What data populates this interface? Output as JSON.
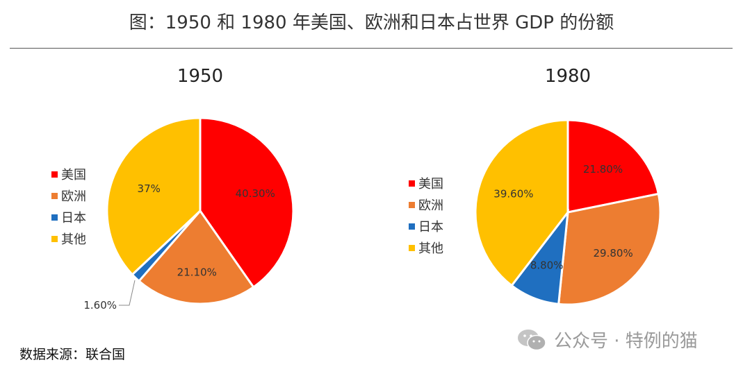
{
  "title": "图：1950 和 1980 年美国、欧洲和日本占世界 GDP 的份额",
  "source": "数据来源：联合国",
  "watermark": {
    "icon": "wechat-icon",
    "text": "公众号 · 特例的猫"
  },
  "colors": {
    "美国": "#ff0000",
    "欧洲": "#ed7d31",
    "日本": "#1f6fc0",
    "其他": "#ffc000"
  },
  "chart_data": [
    {
      "type": "pie",
      "title": "1950",
      "categories": [
        "美国",
        "欧洲",
        "日本",
        "其他"
      ],
      "values": [
        40.3,
        21.1,
        1.6,
        37.0
      ],
      "labels": [
        "40.30%",
        "21.10%",
        "1.60%",
        "37%"
      ],
      "legend": [
        "美国",
        "欧洲",
        "日本",
        "其他"
      ],
      "legend_position": "left",
      "start_angle": "12 o'clock, clockwise"
    },
    {
      "type": "pie",
      "title": "1980",
      "categories": [
        "美国",
        "欧洲",
        "日本",
        "其他"
      ],
      "values": [
        21.8,
        29.8,
        8.8,
        39.6
      ],
      "labels": [
        "21.80%",
        "29.80%",
        "8.80%",
        "39.60%"
      ],
      "legend": [
        "美国",
        "欧洲",
        "日本",
        "其他"
      ],
      "legend_position": "left",
      "start_angle": "12 o'clock, clockwise"
    }
  ]
}
